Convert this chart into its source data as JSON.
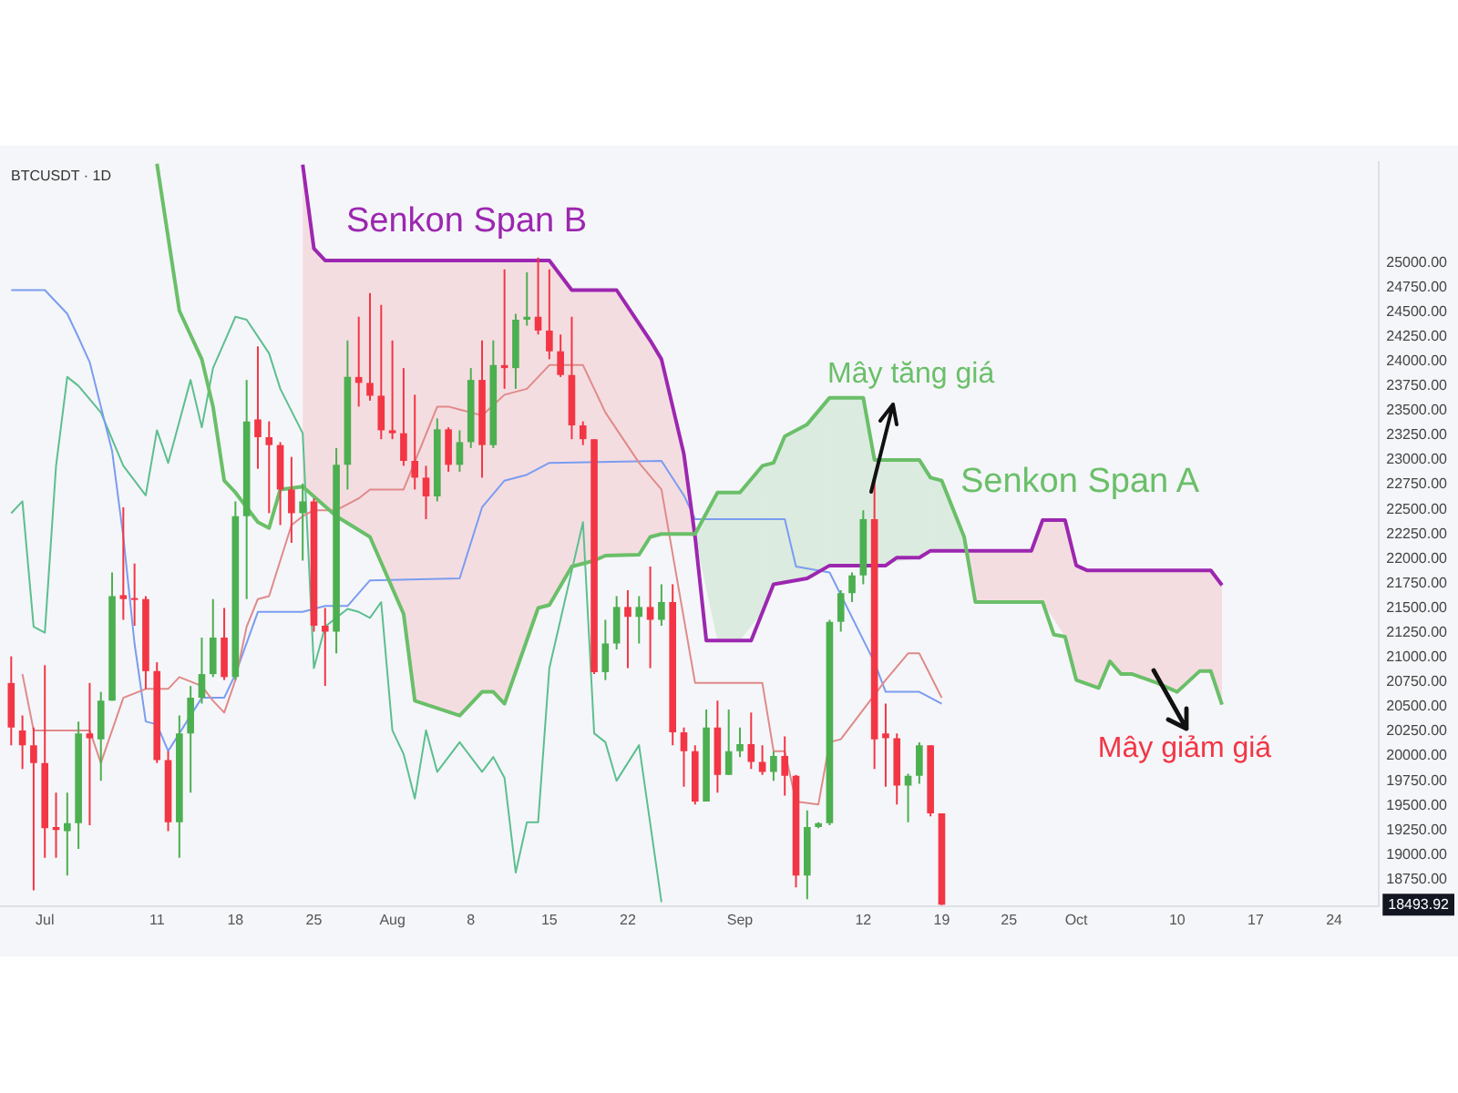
{
  "chart_data": {
    "type": "candlestick",
    "title": "BTCUSDT · 1D",
    "x": [
      "--06-28",
      "--06-29",
      "--06-30",
      "--07-01",
      "--07-02",
      "--07-03",
      "--07-04",
      "--07-05",
      "--07-06",
      "--07-07",
      "--07-08",
      "--07-09",
      "--07-10",
      "--07-11",
      "--07-12",
      "--07-13",
      "--07-14",
      "--07-15",
      "--07-16",
      "--07-17",
      "--07-18",
      "--07-19",
      "--07-20",
      "--07-21",
      "--07-22",
      "--07-23",
      "--07-24",
      "--07-25",
      "--07-26",
      "--07-27",
      "--07-28",
      "--07-29",
      "--07-30",
      "--07-31",
      "--08-01",
      "--08-02",
      "--08-03",
      "--08-04",
      "--08-05",
      "--08-06",
      "--08-07",
      "--08-08",
      "--08-09",
      "--08-10",
      "--08-11",
      "--08-12",
      "--08-13",
      "--08-14",
      "--08-15",
      "--08-16",
      "--08-17",
      "--08-18",
      "--08-19",
      "--08-20",
      "--08-21",
      "--08-22",
      "--08-23",
      "--08-24",
      "--08-25",
      "--08-26",
      "--08-27",
      "--08-28",
      "--08-29",
      "--08-30",
      "--08-31",
      "--09-01",
      "--09-02",
      "--09-03",
      "--09-04",
      "--09-05",
      "--09-06",
      "--09-07",
      "--09-08",
      "--09-09",
      "--09-10",
      "--09-11",
      "--09-12",
      "--09-13",
      "--09-14",
      "--09-15",
      "--09-16",
      "--09-17",
      "--09-18",
      "--09-19"
    ],
    "ohlc": [
      [
        20740,
        21010,
        20110,
        20290
      ],
      [
        20260,
        20410,
        19870,
        20110
      ],
      [
        20110,
        20290,
        18640,
        19930
      ],
      [
        19930,
        20920,
        18970,
        19270
      ],
      [
        19280,
        19630,
        18970,
        19250
      ],
      [
        19240,
        19630,
        18790,
        19320
      ],
      [
        19320,
        20350,
        19060,
        20230
      ],
      [
        20230,
        20740,
        19300,
        20180
      ],
      [
        20170,
        20650,
        19750,
        20560
      ],
      [
        20560,
        21860,
        20560,
        21620
      ],
      [
        21630,
        22520,
        21380,
        21590
      ],
      [
        21600,
        21950,
        21320,
        21590
      ],
      [
        21590,
        21620,
        20680,
        20860
      ],
      [
        20860,
        20950,
        19930,
        19960
      ],
      [
        19960,
        20050,
        19240,
        19330
      ],
      [
        19330,
        20410,
        18970,
        20230
      ],
      [
        20230,
        20710,
        19630,
        20590
      ],
      [
        20590,
        21200,
        20530,
        20830
      ],
      [
        20830,
        21590,
        20800,
        21200
      ],
      [
        21200,
        21500,
        20770,
        20800
      ],
      [
        20800,
        22580,
        20770,
        22430
      ],
      [
        22430,
        23810,
        21590,
        23390
      ],
      [
        23410,
        24150,
        22910,
        23230
      ],
      [
        23230,
        23390,
        22460,
        23150
      ],
      [
        23150,
        23180,
        22340,
        22700
      ],
      [
        22700,
        23030,
        22160,
        22460
      ],
      [
        22460,
        22760,
        21980,
        22580
      ],
      [
        22580,
        22610,
        21260,
        21320
      ],
      [
        21320,
        21500,
        20710,
        21260
      ],
      [
        21260,
        23120,
        21040,
        22950
      ],
      [
        22950,
        24210,
        22700,
        23840
      ],
      [
        23840,
        24450,
        23540,
        23780
      ],
      [
        23780,
        24690,
        23600,
        23650
      ],
      [
        23650,
        24570,
        23210,
        23300
      ],
      [
        23300,
        24210,
        23210,
        23270
      ],
      [
        23270,
        23930,
        22940,
        22990
      ],
      [
        22990,
        23660,
        22700,
        22820
      ],
      [
        22820,
        22940,
        22400,
        22630
      ],
      [
        22630,
        23420,
        22580,
        23310
      ],
      [
        23310,
        23330,
        22880,
        22950
      ],
      [
        22950,
        23300,
        22880,
        23180
      ],
      [
        23180,
        23930,
        23120,
        23810
      ],
      [
        23810,
        24210,
        22820,
        23150
      ],
      [
        23150,
        24210,
        23120,
        23960
      ],
      [
        23960,
        24930,
        23720,
        23930
      ],
      [
        23930,
        24480,
        23720,
        24420
      ],
      [
        24420,
        24900,
        24360,
        24450
      ],
      [
        24450,
        25050,
        24270,
        24310
      ],
      [
        24310,
        24930,
        24020,
        24100
      ],
      [
        24100,
        24270,
        23840,
        23860
      ],
      [
        23860,
        24450,
        23210,
        23350
      ],
      [
        23350,
        23390,
        23150,
        23210
      ],
      [
        23210,
        23210,
        20830,
        20850
      ],
      [
        20850,
        21380,
        20770,
        21140
      ],
      [
        21140,
        21620,
        21080,
        21510
      ],
      [
        21510,
        21680,
        20890,
        21410
      ],
      [
        21410,
        21620,
        21140,
        21510
      ],
      [
        21510,
        21920,
        20890,
        21380
      ],
      [
        21380,
        21740,
        21320,
        21560
      ],
      [
        21560,
        21740,
        20110,
        20240
      ],
      [
        20240,
        20290,
        19690,
        20050
      ],
      [
        20050,
        20110,
        19510,
        19540
      ],
      [
        19540,
        20470,
        19540,
        20290
      ],
      [
        20290,
        20560,
        19630,
        19810
      ],
      [
        19810,
        20470,
        19810,
        20050
      ],
      [
        20050,
        20290,
        19990,
        20120
      ],
      [
        20120,
        20440,
        19870,
        19940
      ],
      [
        19940,
        20110,
        19810,
        19840
      ],
      [
        19840,
        20050,
        19750,
        20000
      ],
      [
        20000,
        20200,
        19600,
        19800
      ],
      [
        19800,
        19810,
        18670,
        18790
      ],
      [
        18790,
        19450,
        18550,
        19280
      ],
      [
        19280,
        19330,
        19270,
        19320
      ],
      [
        19320,
        21380,
        19300,
        21360
      ],
      [
        21360,
        21680,
        21260,
        21650
      ],
      [
        21650,
        21860,
        21560,
        21830
      ],
      [
        21830,
        22490,
        21740,
        22400
      ],
      [
        22400,
        22790,
        19870,
        20170
      ],
      [
        20230,
        20530,
        19690,
        20180
      ],
      [
        20180,
        20230,
        19510,
        19700
      ],
      [
        19700,
        19820,
        19330,
        19800
      ],
      [
        19800,
        20140,
        19720,
        20110
      ],
      [
        20110,
        20110,
        19390,
        19420
      ],
      [
        19420,
        19420,
        18490,
        18493.92
      ]
    ],
    "colors": [
      "#f23645",
      "#f23645",
      "#f23645",
      "#f23645",
      "#f23645",
      "#4caf50",
      "#4caf50",
      "#f23645",
      "#4caf50",
      "#4caf50",
      "#f23645",
      "#f23645",
      "#f23645",
      "#f23645",
      "#f23645",
      "#4caf50",
      "#4caf50",
      "#4caf50",
      "#4caf50",
      "#f23645",
      "#4caf50",
      "#4caf50",
      "#f23645",
      "#f23645",
      "#f23645",
      "#f23645",
      "#4caf50",
      "#f23645",
      "#f23645",
      "#4caf50",
      "#4caf50",
      "#f23645",
      "#f23645",
      "#f23645",
      "#f23645",
      "#f23645",
      "#f23645",
      "#f23645",
      "#4caf50",
      "#f23645",
      "#4caf50",
      "#4caf50",
      "#f23645",
      "#4caf50",
      "#f23645",
      "#4caf50",
      "#4caf50",
      "#f23645",
      "#f23645",
      "#f23645",
      "#f23645",
      "#f23645",
      "#f23645",
      "#4caf50",
      "#4caf50",
      "#f23645",
      "#4caf50",
      "#f23645",
      "#4caf50",
      "#f23645",
      "#f23645",
      "#f23645",
      "#4caf50",
      "#f23645",
      "#4caf50",
      "#4caf50",
      "#f23645",
      "#f23645",
      "#4caf50",
      "#f23645",
      "#f23645",
      "#4caf50",
      "#4caf50",
      "#4caf50",
      "#4caf50",
      "#4caf50",
      "#4caf50",
      "#f23645",
      "#f23645",
      "#f23645",
      "#4caf50",
      "#4caf50",
      "#f23645",
      "#f23645"
    ],
    "series": [
      {
        "type": "line",
        "name": "Senkon Span A",
        "color": "#6abf69",
        "x": [
          "--07-11",
          "--07-13",
          "--07-15",
          "--07-16",
          "--07-17",
          "--07-18",
          "--07-20",
          "--07-21",
          "--07-22",
          "--07-24",
          "--07-27",
          "--07-30",
          "--08-02",
          "--08-03",
          "--08-07",
          "--08-09",
          "--08-10",
          "--08-11",
          "--08-14",
          "--08-15",
          "--08-17",
          "--08-19",
          "--08-20",
          "--08-23",
          "--08-24",
          "--08-25",
          "--08-28",
          "--08-30",
          "--09-01",
          "--09-03",
          "--09-04",
          "--09-05",
          "--09-07",
          "--09-09",
          "--09-12",
          "--09-13",
          "--09-17",
          "--09-18",
          "--09-19",
          "--09-21",
          "--09-22",
          "--09-28",
          "--09-29",
          "--09-30",
          "--10-01",
          "--10-03",
          "--10-04",
          "--10-05",
          "--10-06",
          "--10-08",
          "--10-10",
          "--10-12",
          "--10-13",
          "--10-14"
        ],
        "values": [
          26000,
          24510,
          24020,
          23540,
          22790,
          22670,
          22370,
          22310,
          22700,
          22730,
          22430,
          22220,
          21440,
          20560,
          20410,
          20650,
          20650,
          20530,
          21500,
          21530,
          21920,
          21980,
          22030,
          22040,
          22220,
          22250,
          22250,
          22670,
          22670,
          22940,
          22970,
          23240,
          23360,
          23630,
          23630,
          23000,
          23000,
          22820,
          22790,
          22220,
          21560,
          21560,
          21230,
          21210,
          20770,
          20690,
          20960,
          20830,
          20830,
          20750,
          20650,
          20860,
          20860,
          20520
        ],
        "lower": [
          null,
          null,
          null,
          null,
          null,
          null,
          null,
          null,
          null,
          null,
          null,
          null,
          null,
          null,
          null,
          null,
          null,
          null,
          null,
          null,
          null,
          null,
          null,
          null,
          null,
          null,
          22220,
          21170,
          21170,
          21455,
          21740,
          21760,
          21800,
          21930,
          21930,
          21930,
          22010,
          22080,
          22080,
          22080,
          null,
          null,
          null,
          null,
          null,
          null,
          null,
          null,
          null,
          null,
          null,
          null,
          null,
          null
        ],
        "upper": [
          null,
          null,
          null,
          null,
          null,
          null,
          null,
          null,
          null,
          null,
          null,
          null,
          null,
          null,
          null,
          null,
          null,
          null,
          null,
          null,
          null,
          null,
          null,
          null,
          null,
          null,
          22250,
          22670,
          22670,
          22940,
          22970,
          23240,
          23360,
          23630,
          23630,
          23000,
          23000,
          22820,
          22790,
          22220,
          null,
          null,
          null,
          null,
          null,
          null,
          null,
          null,
          null,
          null,
          null,
          null,
          null,
          null
        ]
      },
      {
        "type": "line",
        "name": "Senkon Span B",
        "color": "#9c27b0",
        "x": [
          "--07-24",
          "--07-25",
          "--07-26",
          "--07-27",
          "--07-30",
          "--08-02",
          "--08-03",
          "--08-07",
          "--08-09",
          "--08-10",
          "--08-11",
          "--08-14",
          "--08-15",
          "--08-17",
          "--08-19",
          "--08-20",
          "--08-21",
          "--08-23",
          "--08-24",
          "--08-25",
          "--08-27",
          "--08-28",
          "--08-29",
          "--09-02",
          "--09-04",
          "--09-07",
          "--09-09",
          "--09-14",
          "--09-15",
          "--09-17",
          "--09-18",
          "--09-21",
          "--09-22",
          "--09-27",
          "--09-28",
          "--09-30",
          "--10-01",
          "--10-02",
          "--10-03",
          "--10-04",
          "--10-05",
          "--10-06",
          "--10-08",
          "--10-10",
          "--10-12",
          "--10-13",
          "--10-14"
        ],
        "values": [
          25990,
          25140,
          25020,
          25020,
          25020,
          25020,
          25020,
          25020,
          25020,
          25020,
          25020,
          25020,
          25020,
          24720,
          24720,
          24720,
          24720,
          24380,
          24210,
          24020,
          23060,
          22220,
          21170,
          21170,
          21740,
          21800,
          21930,
          21930,
          22010,
          22010,
          22080,
          22080,
          22080,
          22080,
          22390,
          22390,
          21930,
          21880,
          21880,
          21880,
          21880,
          21880,
          21880,
          21880,
          21880,
          21880,
          21730
        ],
        "lower": [
          22730,
          22630,
          22530,
          22430,
          22220,
          21440,
          20560,
          20410,
          20650,
          20650,
          20530,
          21500,
          21530,
          21920,
          21980,
          22030,
          22030,
          22040,
          22220,
          22250,
          22250,
          22220,
          null,
          null,
          null,
          null,
          null,
          null,
          null,
          null,
          null,
          22080,
          21560,
          21560,
          21560,
          21210,
          20770,
          20730,
          20690,
          20960,
          20830,
          20830,
          20750,
          20650,
          20860,
          20860,
          20520
        ],
        "upper": [
          25990,
          25140,
          25020,
          25020,
          25020,
          25020,
          25020,
          25020,
          25020,
          25020,
          25020,
          25020,
          25020,
          24720,
          24720,
          24720,
          24720,
          24380,
          24210,
          24020,
          23060,
          22220,
          null,
          null,
          null,
          null,
          null,
          null,
          null,
          null,
          null,
          22080,
          22080,
          22080,
          22390,
          22390,
          21930,
          21880,
          21880,
          21880,
          21880,
          21880,
          21880,
          21880,
          21880,
          21880,
          21730
        ]
      },
      {
        "type": "line",
        "color": "#e08a8a",
        "x": [
          "--06-29",
          "--06-30",
          "--07-05",
          "--07-06",
          "--07-08",
          "--07-10",
          "--07-12",
          "--07-13",
          "--07-15",
          "--07-16",
          "--07-17",
          "--07-18",
          "--07-19",
          "--07-20",
          "--07-21",
          "--07-23",
          "--07-24",
          "--07-25",
          "--07-27",
          "--07-29",
          "--07-30",
          "--08-02",
          "--08-05",
          "--08-06",
          "--08-09",
          "--08-11",
          "--08-13",
          "--08-15",
          "--08-18",
          "--08-20",
          "--08-23",
          "--08-25",
          "--08-28",
          "--09-03",
          "--09-04",
          "--09-05",
          "--09-06",
          "--09-08",
          "--09-09",
          "--09-10",
          "--09-13",
          "--09-14",
          "--09-16",
          "--09-17",
          "--09-19"
        ],
        "values": [
          20830,
          20260,
          20260,
          19930,
          20590,
          20680,
          20680,
          20800,
          20710,
          20560,
          20440,
          20770,
          21310,
          21590,
          21620,
          22340,
          22430,
          22490,
          22490,
          22610,
          22700,
          22700,
          23540,
          23540,
          23450,
          23660,
          23720,
          23960,
          23960,
          23480,
          22970,
          22700,
          20740,
          20740,
          20050,
          20050,
          19540,
          19510,
          20140,
          20170,
          20620,
          20770,
          21040,
          21040,
          20590
        ]
      },
      {
        "type": "line",
        "color": "#7b9cf0",
        "x": [
          "--06-28",
          "--07-01",
          "--07-03",
          "--07-04",
          "--07-05",
          "--07-06",
          "--07-07",
          "--07-08",
          "--07-09",
          "--07-10",
          "--07-11",
          "--07-12",
          "--07-13",
          "--07-15",
          "--07-17",
          "--07-18",
          "--07-20",
          "--07-24",
          "--07-26",
          "--07-28",
          "--07-30",
          "--08-07",
          "--08-09",
          "--08-11",
          "--08-13",
          "--08-15",
          "--08-25",
          "--08-27",
          "--08-28",
          "--09-05",
          "--09-06",
          "--09-09",
          "--09-13",
          "--09-14",
          "--09-17",
          "--09-19"
        ],
        "values": [
          24720,
          24720,
          24480,
          24240,
          23990,
          23540,
          23090,
          22220,
          21140,
          20350,
          20320,
          20050,
          20230,
          20590,
          20590,
          20830,
          21460,
          21460,
          21520,
          21520,
          21780,
          21800,
          22520,
          22790,
          22850,
          22970,
          22990,
          22640,
          22400,
          22400,
          21920,
          21860,
          20950,
          20650,
          20650,
          20530
        ]
      },
      {
        "type": "line",
        "color": "#5cbf8f",
        "x": [
          "--06-28",
          "--06-29",
          "--06-30",
          "--07-01",
          "--07-02",
          "--07-03",
          "--07-04",
          "--07-06",
          "--07-08",
          "--07-10",
          "--07-11",
          "--07-12",
          "--07-14",
          "--07-15",
          "--07-16",
          "--07-18",
          "--07-19",
          "--07-21",
          "--07-22",
          "--07-24",
          "--07-25",
          "--07-26",
          "--07-28",
          "--07-29",
          "--07-30",
          "--07-31",
          "--08-01",
          "--08-02",
          "--08-03",
          "--08-04",
          "--08-05",
          "--08-07",
          "--08-09",
          "--08-10",
          "--08-11",
          "--08-12",
          "--08-13",
          "--08-14",
          "--08-15",
          "--08-18",
          "--08-19",
          "--08-20",
          "--08-21",
          "--08-23",
          "--08-25"
        ],
        "values": [
          22460,
          22580,
          21310,
          21250,
          22940,
          23840,
          23750,
          23480,
          22940,
          22640,
          23300,
          22970,
          23810,
          23330,
          23930,
          24450,
          24420,
          24080,
          23720,
          23270,
          20890,
          21310,
          21490,
          21460,
          21400,
          21560,
          20260,
          20020,
          19570,
          20260,
          19840,
          20140,
          19840,
          19990,
          19780,
          18820,
          19330,
          19330,
          20890,
          22370,
          20230,
          20140,
          19750,
          20110,
          18520
        ]
      }
    ],
    "xlim": [
      "--06-27",
      "--10-28"
    ],
    "xticks": [
      {
        "value": "--07-01",
        "label": "Jul"
      },
      {
        "value": "--07-11",
        "label": "11"
      },
      {
        "value": "--07-18",
        "label": "18"
      },
      {
        "value": "--07-25",
        "label": "25"
      },
      {
        "value": "--08-01",
        "label": "Aug"
      },
      {
        "value": "--08-08",
        "label": "8"
      },
      {
        "value": "--08-15",
        "label": "15"
      },
      {
        "value": "--08-22",
        "label": "22"
      },
      {
        "value": "--09-01",
        "label": "Sep"
      },
      {
        "value": "--09-12",
        "label": "12"
      },
      {
        "value": "--09-19",
        "label": "19"
      },
      {
        "value": "--09-25",
        "label": "25"
      },
      {
        "value": "--10-01",
        "label": "Oct"
      },
      {
        "value": "--10-10",
        "label": "10"
      },
      {
        "value": "--10-17",
        "label": "17"
      },
      {
        "value": "--10-24",
        "label": "24"
      }
    ],
    "ylim": [
      18480,
      26020
    ],
    "yticks": [
      {
        "value": 18750,
        "label": "18750.00"
      },
      {
        "value": 19000,
        "label": "19000.00"
      },
      {
        "value": 19250,
        "label": "19250.00"
      },
      {
        "value": 19500,
        "label": "19500.00"
      },
      {
        "value": 19750,
        "label": "19750.00"
      },
      {
        "value": 20000,
        "label": "20000.00"
      },
      {
        "value": 20250,
        "label": "20250.00"
      },
      {
        "value": 20500,
        "label": "20500.00"
      },
      {
        "value": 20750,
        "label": "20750.00"
      },
      {
        "value": 21000,
        "label": "21000.00"
      },
      {
        "value": 21250,
        "label": "21250.00"
      },
      {
        "value": 21500,
        "label": "21500.00"
      },
      {
        "value": 21750,
        "label": "21750.00"
      },
      {
        "value": 22000,
        "label": "22000.00"
      },
      {
        "value": 22250,
        "label": "22250.00"
      },
      {
        "value": 22500,
        "label": "22500.00"
      },
      {
        "value": 22750,
        "label": "22750.00"
      },
      {
        "value": 23000,
        "label": "23000.00"
      },
      {
        "value": 23250,
        "label": "23250.00"
      },
      {
        "value": 23500,
        "label": "23500.00"
      },
      {
        "value": 23750,
        "label": "23750.00"
      },
      {
        "value": 24000,
        "label": "24000.00"
      },
      {
        "value": 24250,
        "label": "24250.00"
      },
      {
        "value": 24500,
        "label": "24500.00"
      },
      {
        "value": 24750,
        "label": "24750.00"
      },
      {
        "value": 25000,
        "label": "25000.00"
      }
    ],
    "annotations": [
      {
        "text": "Mây tăng giá",
        "x": "--09-13",
        "y": 23000
      },
      "Mây giảm giá",
      {
        "text": "18493.92",
        "y": 18493.92
      }
    ],
    "legend": false
  }
}
